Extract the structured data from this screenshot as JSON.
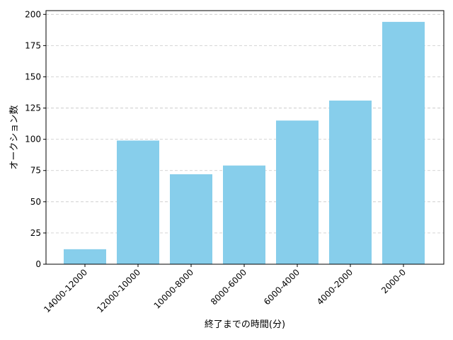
{
  "chart_data": {
    "type": "bar",
    "title": "",
    "xlabel": "終了までの時間(分)",
    "ylabel": "オークション数",
    "categories": [
      "14000-12000",
      "12000-10000",
      "10000-8000",
      "8000-6000",
      "6000-4000",
      "4000-2000",
      "2000-0"
    ],
    "values": [
      12,
      99,
      72,
      79,
      115,
      131,
      194
    ],
    "ylim": [
      0,
      203
    ],
    "yticks": [
      0,
      25,
      50,
      75,
      100,
      125,
      150,
      175,
      200
    ],
    "grid": "y-dashed",
    "bar_color": "#87CEEB"
  }
}
